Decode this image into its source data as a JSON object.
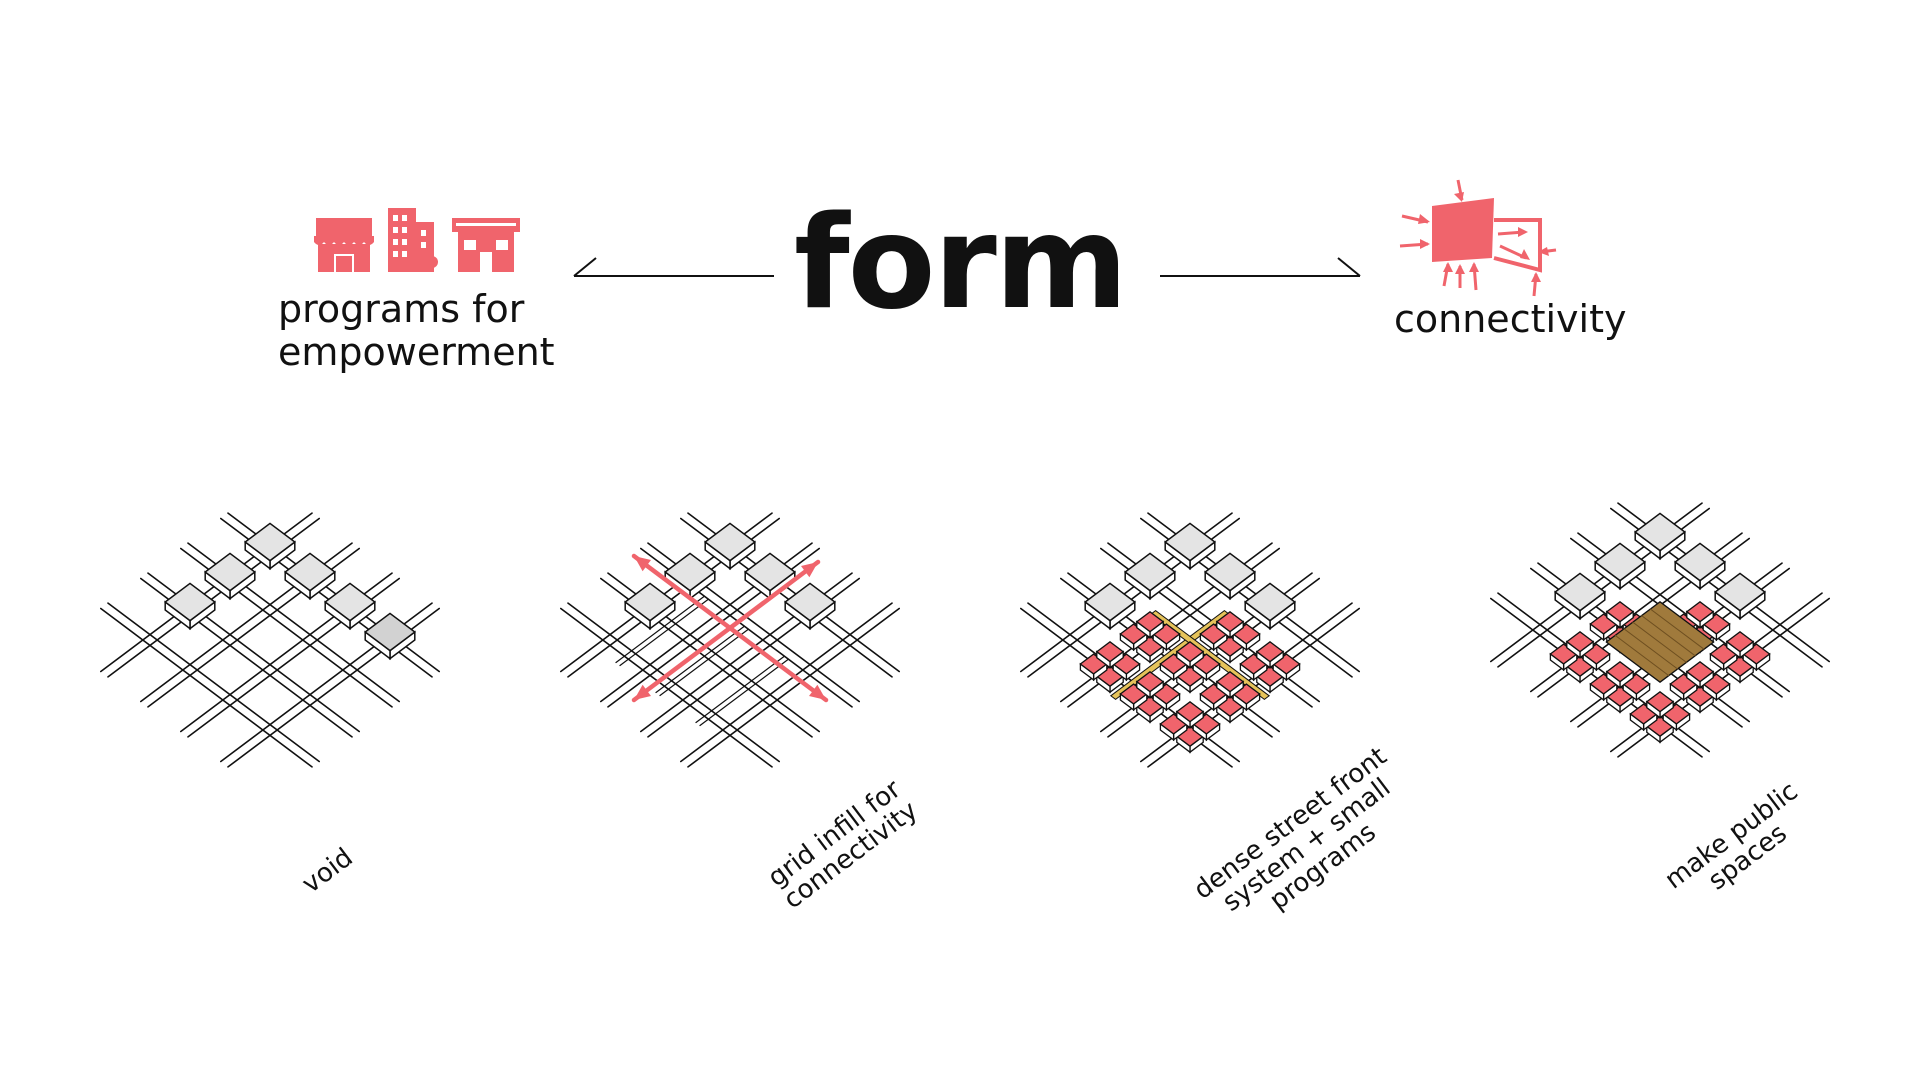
{
  "title": "form",
  "left_label": {
    "line1": "programs for",
    "line2": "empowerment"
  },
  "right_label": "connectivity",
  "icons": [
    "shop-icon",
    "building-icon",
    "house-icon",
    "connectivity-icon"
  ],
  "colors": {
    "accent": "#f0646c",
    "block_grey": "#e4e4e4",
    "public_wood": "#a07a3c",
    "yellow_path": "#e6c35a"
  },
  "steps": [
    {
      "lines": [
        "void"
      ]
    },
    {
      "lines": [
        "grid infill for",
        "connectivity"
      ]
    },
    {
      "lines": [
        "dense street front",
        "system + small",
        "programs"
      ]
    },
    {
      "lines": [
        "make public",
        "spaces"
      ]
    }
  ]
}
